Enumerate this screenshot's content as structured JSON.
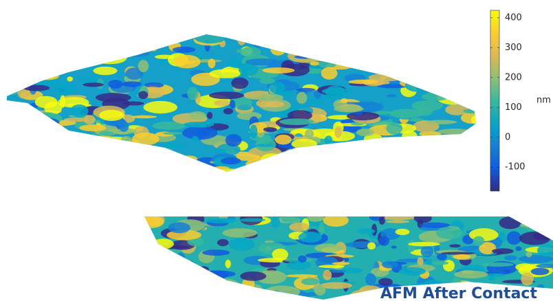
{
  "chart_data": {
    "type": "surface",
    "caption": "AFM After Contact",
    "colorbar": {
      "label": "nm",
      "lim": [
        -180,
        425
      ],
      "ticks": [
        400,
        300,
        200,
        100,
        0,
        -100
      ],
      "colormap": [
        "#352a87",
        "#0f5cdd",
        "#1481d6",
        "#06a7c6",
        "#38b99e",
        "#92bf73",
        "#d9ba56",
        "#fcce2e",
        "#f9fb0e"
      ]
    }
  }
}
